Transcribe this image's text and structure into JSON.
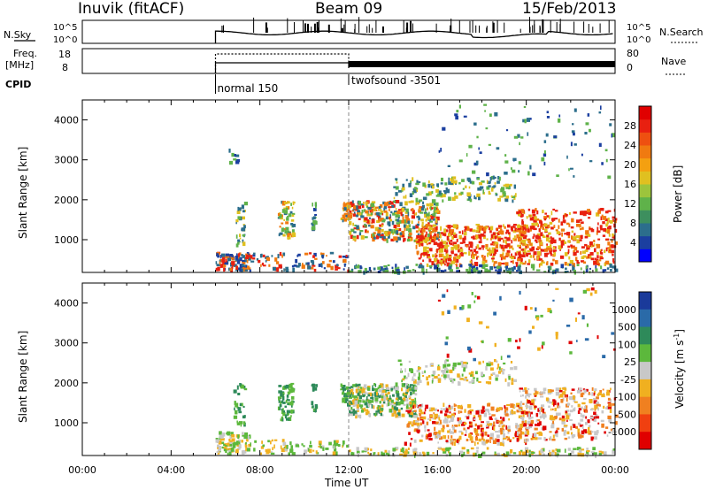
{
  "header": {
    "station": "Inuvik (fitACF)",
    "beam": "Beam 09",
    "date": "15/Feb/2013"
  },
  "strip_labels": {
    "nsky": "N.Sky",
    "nsearch": "N.Search",
    "freq_line1": "Freq.",
    "freq_line2": "[MHz]",
    "nave": "Nave",
    "cpid": "CPID"
  },
  "strip_ticks": {
    "nsky_left": [
      "10^5",
      "10^0"
    ],
    "nsky_right": [
      "10^5",
      "10^0"
    ],
    "freq_left": [
      "18",
      "8"
    ],
    "nave_right": [
      "80",
      "0"
    ]
  },
  "cpid_modes": [
    {
      "label": "normal 150",
      "start_hour": 6
    },
    {
      "label": "twofsound -3501",
      "start_hour": 12
    }
  ],
  "chart_data": [
    {
      "type": "heatmap",
      "title": "Power",
      "ylabel": "Slant Range [km]",
      "xlabel": "Time UT",
      "x_ticks": [
        "00:00",
        "04:00",
        "08:00",
        "12:00",
        "16:00",
        "20:00",
        "00:00"
      ],
      "xlim_hours": [
        0,
        24
      ],
      "y_ticks": [
        1000,
        2000,
        3000,
        4000
      ],
      "ylim": [
        180,
        4500
      ],
      "colorbar": {
        "label": "Power [dB]",
        "ticks": [
          4,
          8,
          12,
          16,
          20,
          24,
          28
        ],
        "range": [
          0,
          32
        ],
        "colors": [
          "#0000ff",
          "#1b3fa0",
          "#2c6e8c",
          "#3d8f5e",
          "#5fb24a",
          "#9cc43c",
          "#e0c020",
          "#f4a010",
          "#f07a10",
          "#ee5010",
          "#e82010",
          "#e00000"
        ]
      },
      "dashed_line_hour": 12
    },
    {
      "type": "heatmap",
      "title": "Velocity",
      "ylabel": "Slant Range [km]",
      "xlabel": "Time UT",
      "x_ticks": [
        "00:00",
        "04:00",
        "08:00",
        "12:00",
        "16:00",
        "20:00",
        "00:00"
      ],
      "xlim_hours": [
        0,
        24
      ],
      "y_ticks": [
        1000,
        2000,
        3000,
        4000
      ],
      "ylim": [
        180,
        4500
      ],
      "colorbar": {
        "label": "Velocity [m s^-1]",
        "ticks": [
          "1000",
          "500",
          "100",
          "25",
          "-25",
          "-100",
          "-500",
          "-1000"
        ],
        "colors": [
          "#1a3a9a",
          "#2a6aa8",
          "#2e8a5a",
          "#5cb83c",
          "#c8c8c8",
          "#f0b020",
          "#f08020",
          "#f04010",
          "#e00000"
        ]
      },
      "dashed_line_hour": 12
    }
  ],
  "colors": {
    "power_scatter": [
      "#1b3fa0",
      "#2c6e8c",
      "#5fb24a",
      "#e0c020",
      "#f07a10",
      "#e82010"
    ],
    "velocity_scatter": [
      "#2e8a5a",
      "#5cb83c",
      "#c8c8c8",
      "#f0b020",
      "#f08020",
      "#e00000",
      "#2a6aa8"
    ]
  }
}
